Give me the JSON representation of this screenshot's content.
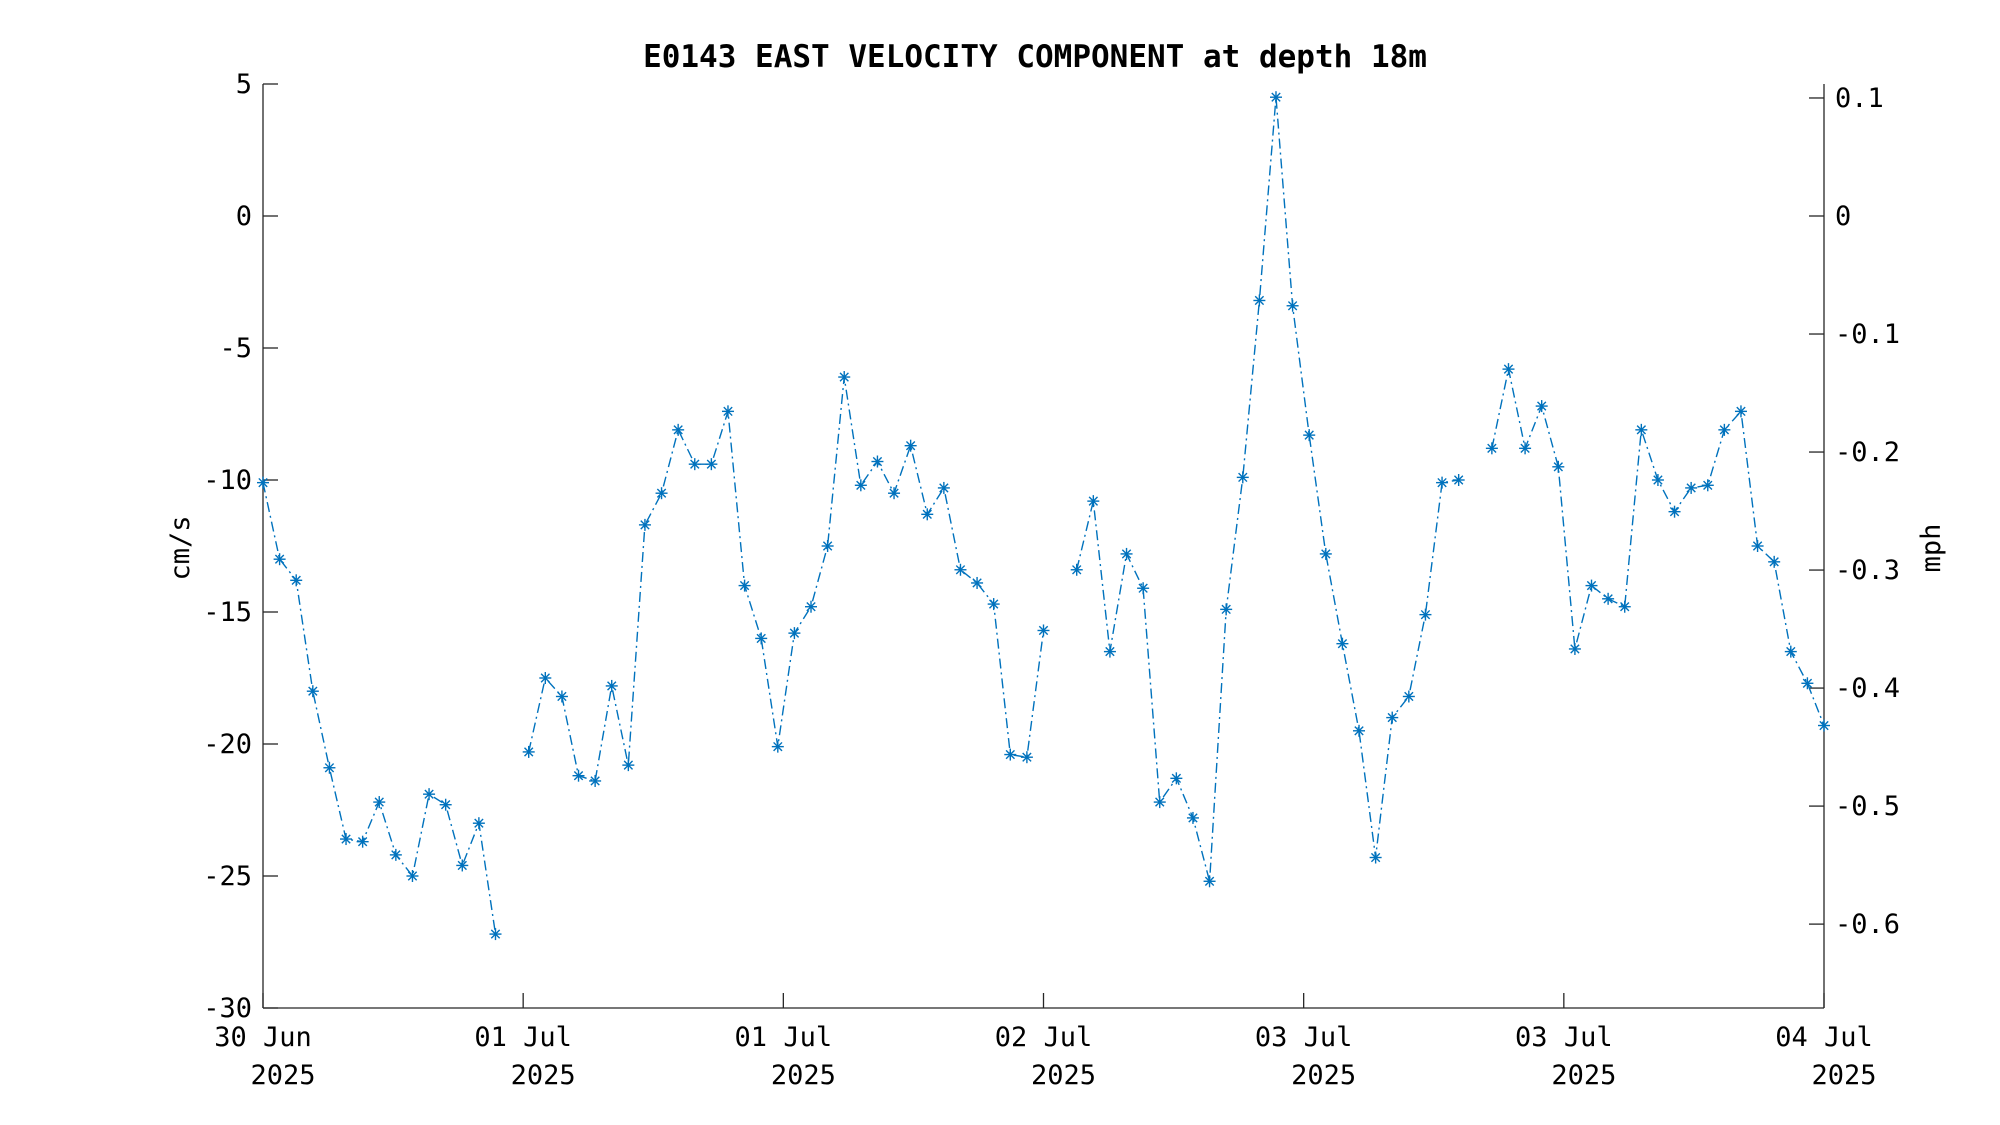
{
  "chart_data": {
    "type": "line",
    "title": "E0143 EAST VELOCITY COMPONENT at depth 18m",
    "ylabel": "cm/s",
    "y2label": "mph",
    "ylim": [
      -30,
      5
    ],
    "yticks": [
      "5",
      "0",
      "-5",
      "-10",
      "-15",
      "-20",
      "-25",
      "-30"
    ],
    "y2ticks": [
      "0.1",
      "0",
      "-0.1",
      "-0.2",
      "-0.3",
      "-0.4",
      "-0.5",
      "-0.6"
    ],
    "xticks": [
      {
        "line1": "30 Jun",
        "line2": "2025"
      },
      {
        "line1": "01 Jul",
        "line2": "2025"
      },
      {
        "line1": "01 Jul",
        "line2": "2025"
      },
      {
        "line1": "02 Jul",
        "line2": "2025"
      },
      {
        "line1": "03 Jul",
        "line2": "2025"
      },
      {
        "line1": "03 Jul",
        "line2": "2025"
      },
      {
        "line1": "04 Jul",
        "line2": "2025"
      }
    ],
    "series": [
      {
        "color": "#0072BD",
        "line_style": "dash-dot",
        "marker": "asterisk",
        "values": [
          -10.1,
          -13.0,
          -13.8,
          -18.0,
          -20.9,
          -23.6,
          -23.7,
          -22.2,
          -24.2,
          -25.0,
          -21.9,
          -22.3,
          -24.6,
          -23.0,
          -27.2,
          null,
          -20.3,
          -17.5,
          -18.2,
          -21.2,
          -21.4,
          -17.8,
          -20.8,
          -11.7,
          -10.5,
          -8.1,
          -9.4,
          -9.4,
          -7.4,
          -14.0,
          -16.0,
          -20.1,
          -15.8,
          -14.8,
          -12.5,
          -6.1,
          -10.2,
          -9.3,
          -10.5,
          -8.7,
          -11.3,
          -10.3,
          -13.4,
          -13.9,
          -14.7,
          -20.4,
          -20.5,
          -15.7,
          null,
          -13.4,
          -10.8,
          -16.5,
          -12.8,
          -14.1,
          -22.2,
          -21.3,
          -22.8,
          -25.2,
          -14.9,
          -9.9,
          -3.2,
          4.5,
          -3.4,
          -8.3,
          -12.8,
          -16.2,
          -19.5,
          -24.3,
          -19.0,
          -18.2,
          -15.1,
          -10.1,
          -10.0,
          null,
          -8.8,
          -5.8,
          -8.8,
          -7.2,
          -9.5,
          -16.4,
          -14.0,
          -14.5,
          -14.8,
          -8.1,
          -10.0,
          -11.2,
          -10.3,
          -10.2,
          -8.1,
          -7.4,
          -12.5,
          -13.1,
          -16.5,
          -17.7,
          -19.3
        ]
      }
    ],
    "grid": false,
    "legend": "none"
  }
}
